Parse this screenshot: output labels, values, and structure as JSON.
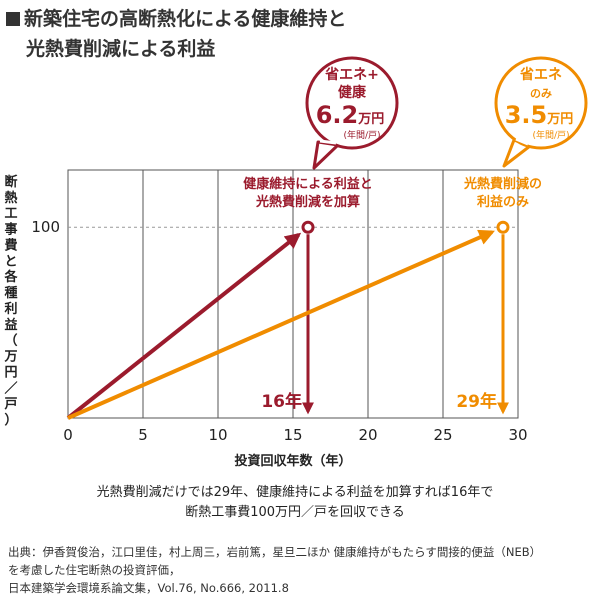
{
  "title": {
    "line1": "新築住宅の高断熱化による健康維持と",
    "line2": "光熱費削減による利益"
  },
  "chart_data": {
    "type": "line",
    "x": {
      "label": "投資回収年数（年）",
      "min": 0,
      "max": 30,
      "ticks": [
        0,
        5,
        10,
        15,
        20,
        25,
        30
      ]
    },
    "y": {
      "label": "断熱工事費と各種利益（万円／戸）",
      "min": 0,
      "max": 130,
      "ticks": [
        100
      ]
    },
    "grid": true,
    "reference_line": {
      "y": 100,
      "style": "dashed"
    },
    "series": [
      {
        "name": "健康維持による利益と光熱費削減を加算",
        "color": "#9b1b2d",
        "points": [
          [
            0,
            0
          ],
          [
            16,
            100
          ]
        ],
        "breakeven_year": 16,
        "breakeven_label": "16年"
      },
      {
        "name": "光熱費削減の利益のみ",
        "color": "#f08c00",
        "points": [
          [
            0,
            0
          ],
          [
            29,
            100
          ]
        ],
        "breakeven_year": 29,
        "breakeven_label": "29年"
      }
    ],
    "series_labels": [
      {
        "line1": "健康維持による利益と",
        "line2": "光熱費削減を加算"
      },
      {
        "line1": "光熱費削減の",
        "line2": "利益のみ"
      }
    ],
    "callouts": [
      {
        "line1": "省エネ+",
        "line2": "健康",
        "value_int": "6.",
        "value_dec": "2",
        "unit": "万円",
        "sub": "(年間/戸)",
        "color": "#9b1b2d"
      },
      {
        "line1": "省エネ",
        "line2": "のみ",
        "value_int": "3.",
        "value_dec": "5",
        "unit": "万円",
        "sub": "(年間/戸)",
        "color": "#f08c00"
      }
    ]
  },
  "caption": {
    "line1": "光熱費削減だけでは29年、健康維持による利益を加算すれば16年で",
    "line2": "断熱工事費100万円／戸を回収できる"
  },
  "source": {
    "line1": "出典：伊香賀俊治，江口里佳，村上周三，岩前篤，星旦二ほか 健康維持がもたらす間接的便益（NEB）",
    "line2": "を考慮した住宅断熱の投資評価，",
    "line3": "日本建築学会環境系論文集，Vol.76, No.666, 2011.8"
  }
}
